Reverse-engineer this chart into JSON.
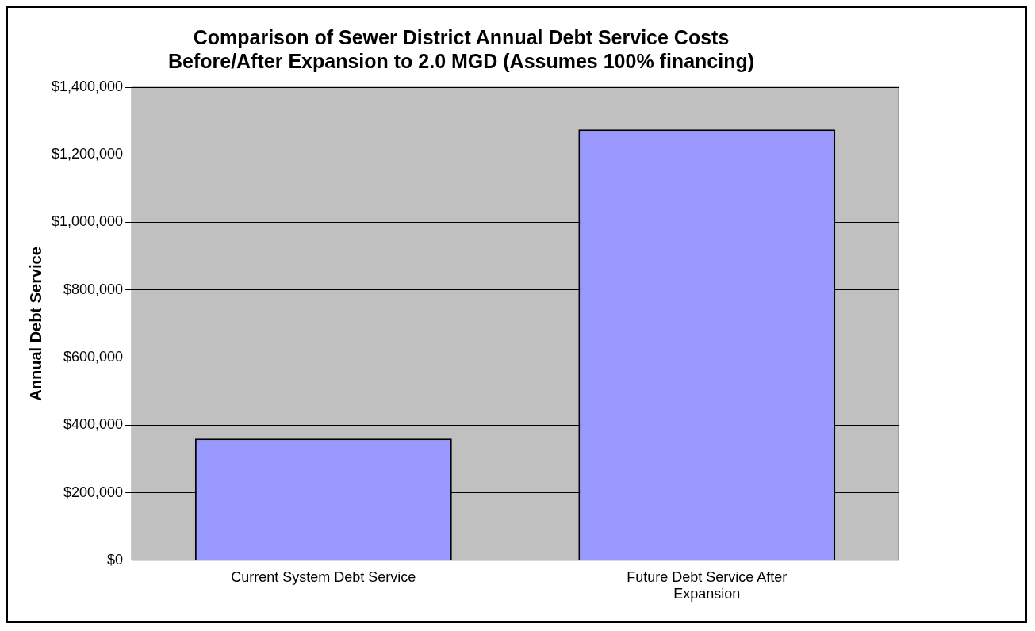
{
  "chart_data": {
    "type": "bar",
    "title": [
      "Comparison of Sewer District Annual Debt Service Costs",
      "Before/After Expansion to 2.0 MGD (Assumes 100% financing)"
    ],
    "ylabel": "Annual Debt Service",
    "categories": [
      "Current System Debt Service",
      "Future Debt Service After Expansion"
    ],
    "values": [
      360000,
      1275000
    ],
    "color": "#9999ff",
    "ylim": [
      0,
      1400000
    ],
    "yticks": [
      {
        "value": 0,
        "label": "$0"
      },
      {
        "value": 200000,
        "label": "$200,000"
      },
      {
        "value": 400000,
        "label": "$400,000"
      },
      {
        "value": 600000,
        "label": "$600,000"
      },
      {
        "value": 800000,
        "label": "$800,000"
      },
      {
        "value": 1000000,
        "label": "$1,000,000"
      },
      {
        "value": 1200000,
        "label": "$1,200,000"
      },
      {
        "value": 1400000,
        "label": "$1,400,000"
      }
    ],
    "grid": "y",
    "legend": false
  }
}
